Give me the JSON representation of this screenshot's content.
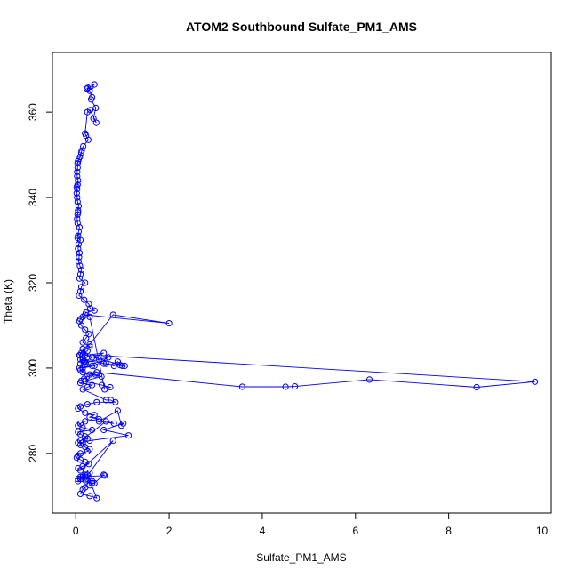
{
  "chart_data": {
    "type": "line",
    "title": "ATOM2 Southbound Sulfate_PM1_AMS",
    "xlabel": "Sulfate_PM1_AMS",
    "ylabel": "Theta (K)",
    "xlim": [
      -0.5,
      10.2
    ],
    "ylim": [
      266,
      374
    ],
    "xticks": [
      0,
      2,
      4,
      6,
      8,
      10
    ],
    "yticks": [
      280,
      300,
      320,
      340,
      360
    ],
    "grid": false,
    "series": [
      {
        "color": "#0000ff",
        "marker": "open-circle",
        "x": [
          0.4,
          0.32,
          0.26,
          0.24,
          0.3,
          0.35,
          0.33,
          0.43,
          0.38,
          0.44,
          0.31,
          0.25,
          0.2,
          0.22,
          0.27,
          0.16,
          0.13,
          0.12,
          0.09,
          0.06,
          0.05,
          0.04,
          0.04,
          0.03,
          0.03,
          0.05,
          0.04,
          0.02,
          0.03,
          0.02,
          0.03,
          0.04,
          0.06,
          0.05,
          0.05,
          0.04,
          0.03,
          0.04,
          0.08,
          0.06,
          0.05,
          0.04,
          0.1,
          0.06,
          0.05,
          0.08,
          0.07,
          0.06,
          0.09,
          0.12,
          0.1,
          0.08,
          0.2,
          0.12,
          0.1,
          0.07,
          0.18,
          0.28,
          0.31,
          0.4,
          0.22,
          0.15,
          0.1,
          0.08,
          0.12,
          0.2,
          0.28,
          0.22,
          0.15,
          0.3,
          0.25,
          0.12,
          0.09,
          0.15,
          0.18,
          0.22,
          0.35,
          0.08,
          0.1,
          0.15,
          0.42,
          0.24,
          0.18,
          0.12,
          0.56,
          0.74,
          0.62,
          0.3,
          0.2,
          2.0,
          0.8,
          0.3,
          0.15,
          0.2,
          0.6,
          0.35,
          0.2,
          0.1,
          0.5,
          0.7,
          0.4,
          0.15,
          0.08,
          0.1,
          0.65,
          0.82,
          0.9,
          1.0,
          0.6,
          0.95,
          1.05,
          0.15,
          9.85,
          8.6,
          6.3,
          4.7,
          4.5,
          3.57,
          0.45,
          0.3,
          0.55,
          0.2,
          0.1,
          0.35,
          0.25,
          0.15,
          0.65,
          0.75,
          0.85,
          0.45,
          0.25,
          0.1,
          0.05,
          0.2,
          0.4,
          0.3,
          0.5,
          0.2,
          0.1,
          0.05,
          0.15,
          0.35,
          0.05,
          0.1,
          0.2,
          0.25,
          0.1,
          0.05,
          0.65,
          0.82,
          0.5,
          0.9,
          0.98,
          1.02,
          0.6,
          1.13,
          0.3,
          0.15,
          0.1,
          0.2,
          0.3,
          0.25,
          0.1,
          0.05,
          0.02,
          0.1,
          0.2,
          0.28,
          0.15,
          0.05,
          0.1,
          0.8,
          0.3,
          0.25,
          0.15,
          0.05,
          0.2,
          0.15,
          0.1,
          0.05,
          0.4,
          0.6,
          0.62,
          0.1,
          0.22,
          0.35,
          0.3,
          0.2,
          0.15,
          0.1,
          0.3,
          0.45,
          0.25,
          0.3,
          0.2,
          0.35
        ],
        "y": [
          366.5,
          366.0,
          365.7,
          365.5,
          365.0,
          363.5,
          363.0,
          361.0,
          358.5,
          357.5,
          360.5,
          360.0,
          355.0,
          354.5,
          353.5,
          352.0,
          351.0,
          350.5,
          349.5,
          349.0,
          348.5,
          348.0,
          347.0,
          346.0,
          345.0,
          344.0,
          343.0,
          342.5,
          342.0,
          341.0,
          340.0,
          339.0,
          338.0,
          337.0,
          336.5,
          336.0,
          335.0,
          334.0,
          333.0,
          332.0,
          331.0,
          330.5,
          330.0,
          329.0,
          328.0,
          327.0,
          326.0,
          325.0,
          324.0,
          323.0,
          322.0,
          321.0,
          320.0,
          319.0,
          318.0,
          317.0,
          316.0,
          315.0,
          314.0,
          313.5,
          313.0,
          312.0,
          311.5,
          311.0,
          310.0,
          309.0,
          308.0,
          307.0,
          306.0,
          305.0,
          304.0,
          303.5,
          303.0,
          302.0,
          301.5,
          301.0,
          300.5,
          300.0,
          299.5,
          299.0,
          298.5,
          298.0,
          297.5,
          297.0,
          296.0,
          295.5,
          295.0,
          312.0,
          312.5,
          310.5,
          312.5,
          305.5,
          304.5,
          303.0,
          303.5,
          302.5,
          301.5,
          301.0,
          302.0,
          302.5,
          300.5,
          300.0,
          303.0,
          302.0,
          301.0,
          300.5,
          301.5,
          300.5,
          301.0,
          300.7,
          300.5,
          303.2,
          296.8,
          295.5,
          297.3,
          295.7,
          295.6,
          295.6,
          299.0,
          298.5,
          298.0,
          297.0,
          296.5,
          296.0,
          295.5,
          295.0,
          292.5,
          292.5,
          292.0,
          292.0,
          291.5,
          291.0,
          290.5,
          289.5,
          289.0,
          288.5,
          288.0,
          287.5,
          287.0,
          286.5,
          286.0,
          285.5,
          285.0,
          284.5,
          284.0,
          283.5,
          283.0,
          282.5,
          287.5,
          287.0,
          287.5,
          290.0,
          286.5,
          287.0,
          285.5,
          284.2,
          283.0,
          282.5,
          282.0,
          281.5,
          281.0,
          280.5,
          280.0,
          279.5,
          279.0,
          278.5,
          278.0,
          277.5,
          277.0,
          276.5,
          276.0,
          283.0,
          275.5,
          275.0,
          274.5,
          274.0,
          275.0,
          274.5,
          274.0,
          273.5,
          273.0,
          275.0,
          274.8,
          274.5,
          273.5,
          273.0,
          272.5,
          272.0,
          271.5,
          270.5,
          270.0,
          269.5,
          275.0,
          274.0,
          274.5,
          273.5
        ]
      }
    ]
  }
}
